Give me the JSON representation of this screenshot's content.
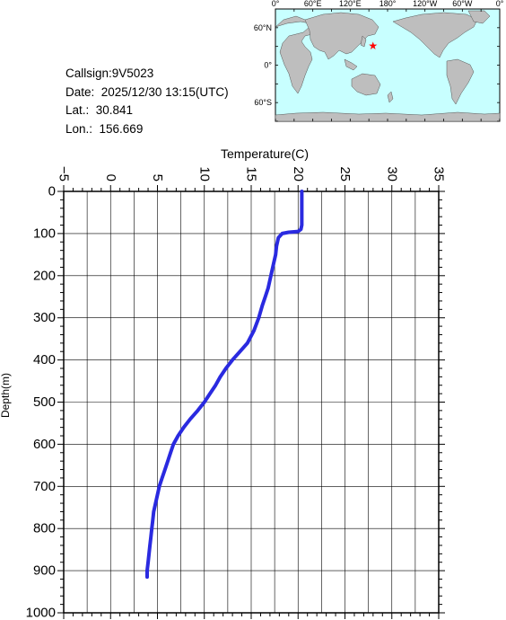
{
  "info": {
    "callsign": "Callsign:9V5023",
    "date": "Date:  2025/12/30 13:15(UTC)",
    "lat": "Lat.:  30.841",
    "lon": "Lon.:  156.669"
  },
  "map": {
    "lon_labels": [
      "0°",
      "60°E",
      "120°E",
      "180°",
      "120°W",
      "60°W",
      "0°"
    ],
    "lat_labels": [
      "60°N",
      "0°",
      "60°S"
    ],
    "ocean_color": "#c8ffff",
    "land_color": "#bebebe",
    "marker_color": "#ff0000",
    "marker_lat": 30.841,
    "marker_lon": 156.669
  },
  "chart_data": {
    "type": "line",
    "xlabel": "Temperature(C)",
    "ylabel": "Depth(m)",
    "xlim": [
      -5,
      35
    ],
    "ylim": [
      0,
      1000
    ],
    "x_ticks": [
      -5,
      0,
      5,
      10,
      15,
      20,
      25,
      30,
      35
    ],
    "y_ticks": [
      0,
      100,
      200,
      300,
      400,
      500,
      600,
      700,
      800,
      900,
      1000
    ],
    "x_tick_labels": [
      "−5",
      "0",
      "5",
      "10",
      "15",
      "20",
      "25",
      "30",
      "35"
    ],
    "y_tick_labels": [
      "0",
      "100",
      "200",
      "300",
      "400",
      "500",
      "600",
      "700",
      "800",
      "900",
      "1000"
    ],
    "grid": true,
    "line_color": "#2a2ae0",
    "series": [
      {
        "temperature": [
          20.4,
          20.4,
          20.4,
          20.4,
          20.4,
          20.3,
          20.0,
          19.0,
          18.3,
          17.9,
          17.7,
          17.6,
          17.4,
          17.2,
          17.0,
          16.8,
          16.5,
          16.2,
          15.8,
          15.3,
          14.6,
          13.8,
          13.0,
          12.3,
          11.7,
          11.2,
          10.6,
          10.0,
          9.3,
          8.5,
          7.8,
          7.2,
          6.7,
          6.4,
          6.1,
          5.8,
          5.5,
          5.2,
          5.0,
          4.8,
          4.6,
          4.5,
          4.4,
          4.3,
          4.2,
          4.1,
          4.0,
          3.9,
          3.9
        ],
        "depth": [
          0,
          20,
          40,
          60,
          80,
          90,
          95,
          97,
          100,
          110,
          130,
          150,
          170,
          190,
          210,
          230,
          250,
          270,
          300,
          330,
          360,
          380,
          400,
          420,
          440,
          460,
          480,
          500,
          520,
          540,
          560,
          580,
          600,
          620,
          640,
          660,
          680,
          700,
          720,
          740,
          760,
          780,
          800,
          820,
          840,
          860,
          880,
          900,
          915
        ]
      }
    ]
  }
}
